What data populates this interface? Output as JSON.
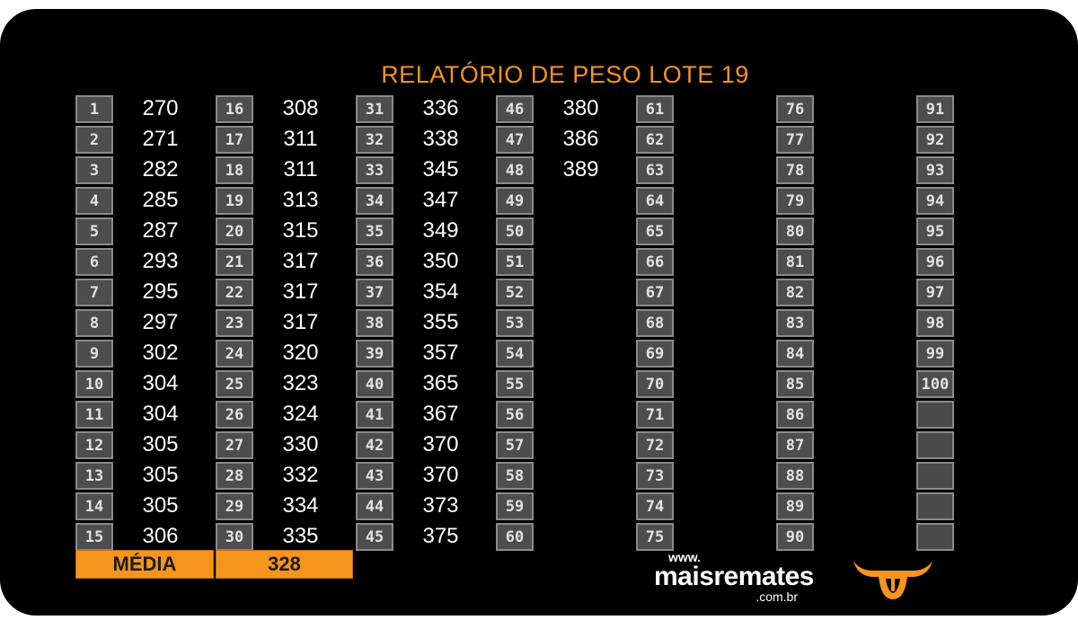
{
  "title": "RELATÓRIO DE PESO LOTE  19",
  "columns": [
    {
      "numbers": [
        "1",
        "2",
        "3",
        "4",
        "5",
        "6",
        "7",
        "8",
        "9",
        "10",
        "11",
        "12",
        "13",
        "14",
        "15"
      ],
      "weights": [
        "270",
        "271",
        "282",
        "285",
        "287",
        "293",
        "295",
        "297",
        "302",
        "304",
        "304",
        "305",
        "305",
        "305",
        "306"
      ]
    },
    {
      "numbers": [
        "16",
        "17",
        "18",
        "19",
        "20",
        "21",
        "22",
        "23",
        "24",
        "25",
        "26",
        "27",
        "28",
        "29",
        "30"
      ],
      "weights": [
        "308",
        "311",
        "311",
        "313",
        "315",
        "317",
        "317",
        "317",
        "320",
        "323",
        "324",
        "330",
        "332",
        "334",
        "335"
      ]
    },
    {
      "numbers": [
        "31",
        "32",
        "33",
        "34",
        "35",
        "36",
        "37",
        "38",
        "39",
        "40",
        "41",
        "42",
        "43",
        "44",
        "45"
      ],
      "weights": [
        "336",
        "338",
        "345",
        "347",
        "349",
        "350",
        "354",
        "355",
        "357",
        "365",
        "367",
        "370",
        "370",
        "373",
        "375"
      ]
    },
    {
      "numbers": [
        "46",
        "47",
        "48",
        "49",
        "50",
        "51",
        "52",
        "53",
        "54",
        "55",
        "56",
        "57",
        "58",
        "59",
        "60"
      ],
      "weights": [
        "380",
        "386",
        "389",
        "",
        "",
        "",
        "",
        "",
        "",
        "",
        "",
        "",
        "",
        "",
        ""
      ]
    },
    {
      "numbers": [
        "61",
        "62",
        "63",
        "64",
        "65",
        "66",
        "67",
        "68",
        "69",
        "70",
        "71",
        "72",
        "73",
        "74",
        "75"
      ],
      "weights": [
        "",
        "",
        "",
        "",
        "",
        "",
        "",
        "",
        "",
        "",
        "",
        "",
        "",
        "",
        ""
      ]
    },
    {
      "numbers": [
        "76",
        "77",
        "78",
        "79",
        "80",
        "81",
        "82",
        "83",
        "84",
        "85",
        "86",
        "87",
        "88",
        "89",
        "90"
      ],
      "weights": [
        "",
        "",
        "",
        "",
        "",
        "",
        "",
        "",
        "",
        "",
        "",
        "",
        "",
        "",
        ""
      ]
    },
    {
      "numbers": [
        "91",
        "92",
        "93",
        "94",
        "95",
        "96",
        "97",
        "98",
        "99",
        "100",
        "",
        "",
        "",
        "",
        ""
      ],
      "weights": [
        "",
        "",
        "",
        "",
        "",
        "",
        "",
        "",
        "",
        "",
        "",
        "",
        "",
        "",
        ""
      ]
    }
  ],
  "footer": {
    "media_label": "MÉDIA",
    "media_value": "328"
  },
  "logo": {
    "www": "www.",
    "name": "maisremates",
    "domain": ".com.br",
    "icon": "bull-head-icon",
    "accent": "#f7941d"
  },
  "colors": {
    "background": "#000000",
    "accent": "#f7941d",
    "number_box": "#4d4d4d"
  }
}
